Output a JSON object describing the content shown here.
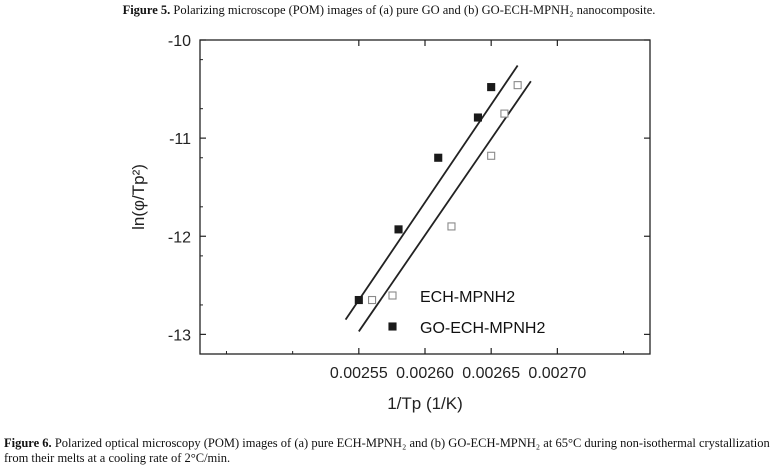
{
  "captions": {
    "top_label": "Figure 5.",
    "top_text": "Polarizing microscope (POM) images of (a) pure GO and (b) GO-ECH-MPNH₂ nanocomposite.",
    "bottom_label": "Figure 6.",
    "bottom_text": "Polarized optical microscopy (POM) images of (a) pure ECH-MPNH₂ and (b) GO-ECH-MPNH₂ at 65°C during non-isothermal crystallization from their melts at a cooling rate of 2°C/min."
  },
  "chart_data": {
    "type": "scatter",
    "xlabel": "1/Tp (1/K)",
    "ylabel": "ln(φ/Tp²)",
    "xlim": [
      0.00243,
      0.00277
    ],
    "ylim": [
      -13.2,
      -10.0
    ],
    "xticks": [
      0.00255,
      0.0026,
      0.00265,
      0.0027
    ],
    "xtick_labels": [
      "0.00255",
      "0.00260",
      "0.00265",
      "0.00270"
    ],
    "yticks": [
      -13,
      -12,
      -11,
      -10
    ],
    "ytick_labels": [
      "-13",
      "-12",
      "-11",
      "-10"
    ],
    "legend_position": "bottom-right",
    "series": [
      {
        "name": "ECH-MPNH2",
        "marker": "open-square",
        "color": "#8a8a8a",
        "x": [
          0.00256,
          0.00262,
          0.00265,
          0.00266,
          0.00267
        ],
        "y": [
          -12.65,
          -11.9,
          -11.18,
          -10.75,
          -10.46
        ],
        "fit": {
          "x": [
            0.00255,
            0.00268
          ],
          "y": [
            -12.97,
            -10.42
          ]
        }
      },
      {
        "name": "GO-ECH-MPNH2",
        "marker": "filled-square",
        "color": "#1a1a1a",
        "x": [
          0.00255,
          0.00258,
          0.00261,
          0.00264,
          0.00265
        ],
        "y": [
          -12.65,
          -11.93,
          -11.2,
          -10.79,
          -10.48
        ],
        "fit": {
          "x": [
            0.00254,
            0.00267
          ],
          "y": [
            -12.85,
            -10.26
          ]
        }
      }
    ]
  }
}
